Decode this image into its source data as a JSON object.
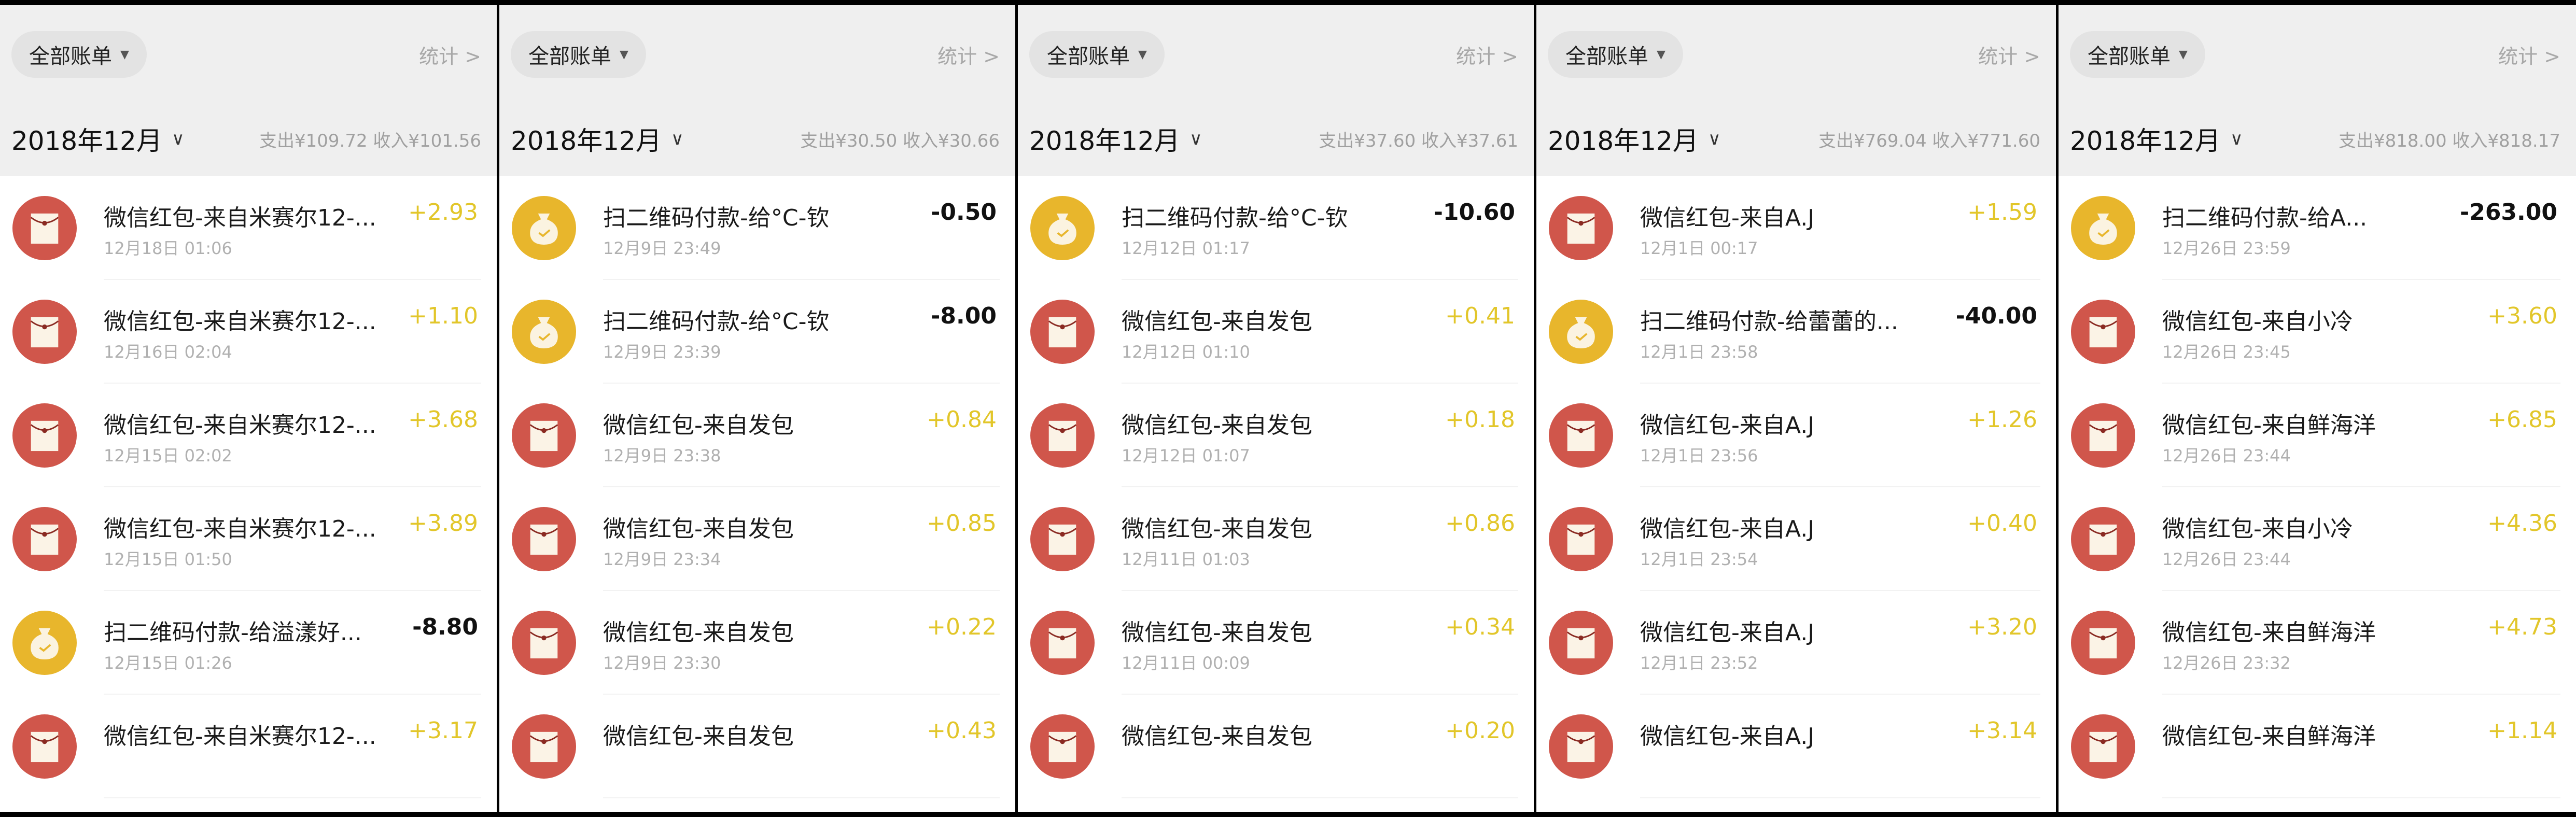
{
  "colors": {
    "income": "#e2c62a",
    "expense": "#111111",
    "redpacket": "#d0564b",
    "qrpay": "#e8b62c",
    "header_bg": "#efefef"
  },
  "panels": [
    {
      "filter": "全部账单",
      "stats": "统计 >",
      "month": "2018年12月",
      "summary": "支出¥109.72  收入¥101.56",
      "rows": [
        {
          "type": "redpacket",
          "icon": "red-envelope-icon",
          "title": "微信红包-来自米赛尔12-...",
          "date": "12月18日 01:06",
          "amount": "+2.93"
        },
        {
          "type": "redpacket",
          "icon": "red-envelope-icon",
          "title": "微信红包-来自米赛尔12-...",
          "date": "12月16日 02:04",
          "amount": "+1.10"
        },
        {
          "type": "redpacket",
          "icon": "red-envelope-icon",
          "title": "微信红包-来自米赛尔12-...",
          "date": "12月15日 02:02",
          "amount": "+3.68"
        },
        {
          "type": "redpacket",
          "icon": "red-envelope-icon",
          "title": "微信红包-来自米赛尔12-...",
          "date": "12月15日 01:50",
          "amount": "+3.89"
        },
        {
          "type": "qrpay",
          "icon": "money-bag-icon",
          "title": "扫二维码付款-给溢漾好...",
          "date": "12月15日 01:26",
          "amount": "-8.80"
        },
        {
          "type": "redpacket",
          "icon": "red-envelope-icon",
          "title": "微信红包-来自米赛尔12-...",
          "date": "",
          "amount": "+3.17"
        }
      ]
    },
    {
      "filter": "全部账单",
      "stats": "统计 >",
      "month": "2018年12月",
      "summary": "支出¥30.50  收入¥30.66",
      "rows": [
        {
          "type": "qrpay",
          "icon": "money-bag-icon",
          "title": "扫二维码付款-给°C-钦",
          "date": "12月9日 23:49",
          "amount": "-0.50"
        },
        {
          "type": "qrpay",
          "icon": "money-bag-icon",
          "title": "扫二维码付款-给°C-钦",
          "date": "12月9日 23:39",
          "amount": "-8.00"
        },
        {
          "type": "redpacket",
          "icon": "red-envelope-icon",
          "title": "微信红包-来自发包",
          "date": "12月9日 23:38",
          "amount": "+0.84"
        },
        {
          "type": "redpacket",
          "icon": "red-envelope-icon",
          "title": "微信红包-来自发包",
          "date": "12月9日 23:34",
          "amount": "+0.85"
        },
        {
          "type": "redpacket",
          "icon": "red-envelope-icon",
          "title": "微信红包-来自发包",
          "date": "12月9日 23:30",
          "amount": "+0.22"
        },
        {
          "type": "redpacket",
          "icon": "red-envelope-icon",
          "title": "微信红包-来自发包",
          "date": "",
          "amount": "+0.43"
        }
      ]
    },
    {
      "filter": "全部账单",
      "stats": "统计 >",
      "month": "2018年12月",
      "summary": "支出¥37.60  收入¥37.61",
      "rows": [
        {
          "type": "qrpay",
          "icon": "money-bag-icon",
          "title": "扫二维码付款-给°C-钦",
          "date": "12月12日 01:17",
          "amount": "-10.60"
        },
        {
          "type": "redpacket",
          "icon": "red-envelope-icon",
          "title": "微信红包-来自发包",
          "date": "12月12日 01:10",
          "amount": "+0.41"
        },
        {
          "type": "redpacket",
          "icon": "red-envelope-icon",
          "title": "微信红包-来自发包",
          "date": "12月12日 01:07",
          "amount": "+0.18"
        },
        {
          "type": "redpacket",
          "icon": "red-envelope-icon",
          "title": "微信红包-来自发包",
          "date": "12月11日 01:03",
          "amount": "+0.86"
        },
        {
          "type": "redpacket",
          "icon": "red-envelope-icon",
          "title": "微信红包-来自发包",
          "date": "12月11日 00:09",
          "amount": "+0.34"
        },
        {
          "type": "redpacket",
          "icon": "red-envelope-icon",
          "title": "微信红包-来自发包",
          "date": "",
          "amount": "+0.20"
        }
      ]
    },
    {
      "filter": "全部账单",
      "stats": "统计 >",
      "month": "2018年12月",
      "summary": "支出¥769.04  收入¥771.60",
      "rows": [
        {
          "type": "redpacket",
          "icon": "red-envelope-icon",
          "title": "微信红包-来自A.J",
          "date": "12月1日 00:17",
          "amount": "+1.59"
        },
        {
          "type": "qrpay",
          "icon": "money-bag-icon",
          "title": "扫二维码付款-给蕾蕾的...",
          "date": "12月1日 23:58",
          "amount": "-40.00"
        },
        {
          "type": "redpacket",
          "icon": "red-envelope-icon",
          "title": "微信红包-来自A.J",
          "date": "12月1日 23:56",
          "amount": "+1.26"
        },
        {
          "type": "redpacket",
          "icon": "red-envelope-icon",
          "title": "微信红包-来自A.J",
          "date": "12月1日 23:54",
          "amount": "+0.40"
        },
        {
          "type": "redpacket",
          "icon": "red-envelope-icon",
          "title": "微信红包-来自A.J",
          "date": "12月1日 23:52",
          "amount": "+3.20"
        },
        {
          "type": "redpacket",
          "icon": "red-envelope-icon",
          "title": "微信红包-来自A.J",
          "date": "",
          "amount": "+3.14"
        }
      ]
    },
    {
      "filter": "全部账单",
      "stats": "统计 >",
      "month": "2018年12月",
      "summary": "支出¥818.00  收入¥818.17",
      "rows": [
        {
          "type": "qrpay",
          "icon": "money-bag-icon",
          "title": "扫二维码付款-给A...",
          "date": "12月26日 23:59",
          "amount": "-263.00"
        },
        {
          "type": "redpacket",
          "icon": "red-envelope-icon",
          "title": "微信红包-来自小冷",
          "date": "12月26日 23:45",
          "amount": "+3.60"
        },
        {
          "type": "redpacket",
          "icon": "red-envelope-icon",
          "title": "微信红包-来自鲜海洋",
          "date": "12月26日 23:44",
          "amount": "+6.85"
        },
        {
          "type": "redpacket",
          "icon": "red-envelope-icon",
          "title": "微信红包-来自小冷",
          "date": "12月26日 23:44",
          "amount": "+4.36"
        },
        {
          "type": "redpacket",
          "icon": "red-envelope-icon",
          "title": "微信红包-来自鲜海洋",
          "date": "12月26日 23:32",
          "amount": "+4.73"
        },
        {
          "type": "redpacket",
          "icon": "red-envelope-icon",
          "title": "微信红包-来自鲜海洋",
          "date": "",
          "amount": "+1.14"
        }
      ]
    }
  ]
}
